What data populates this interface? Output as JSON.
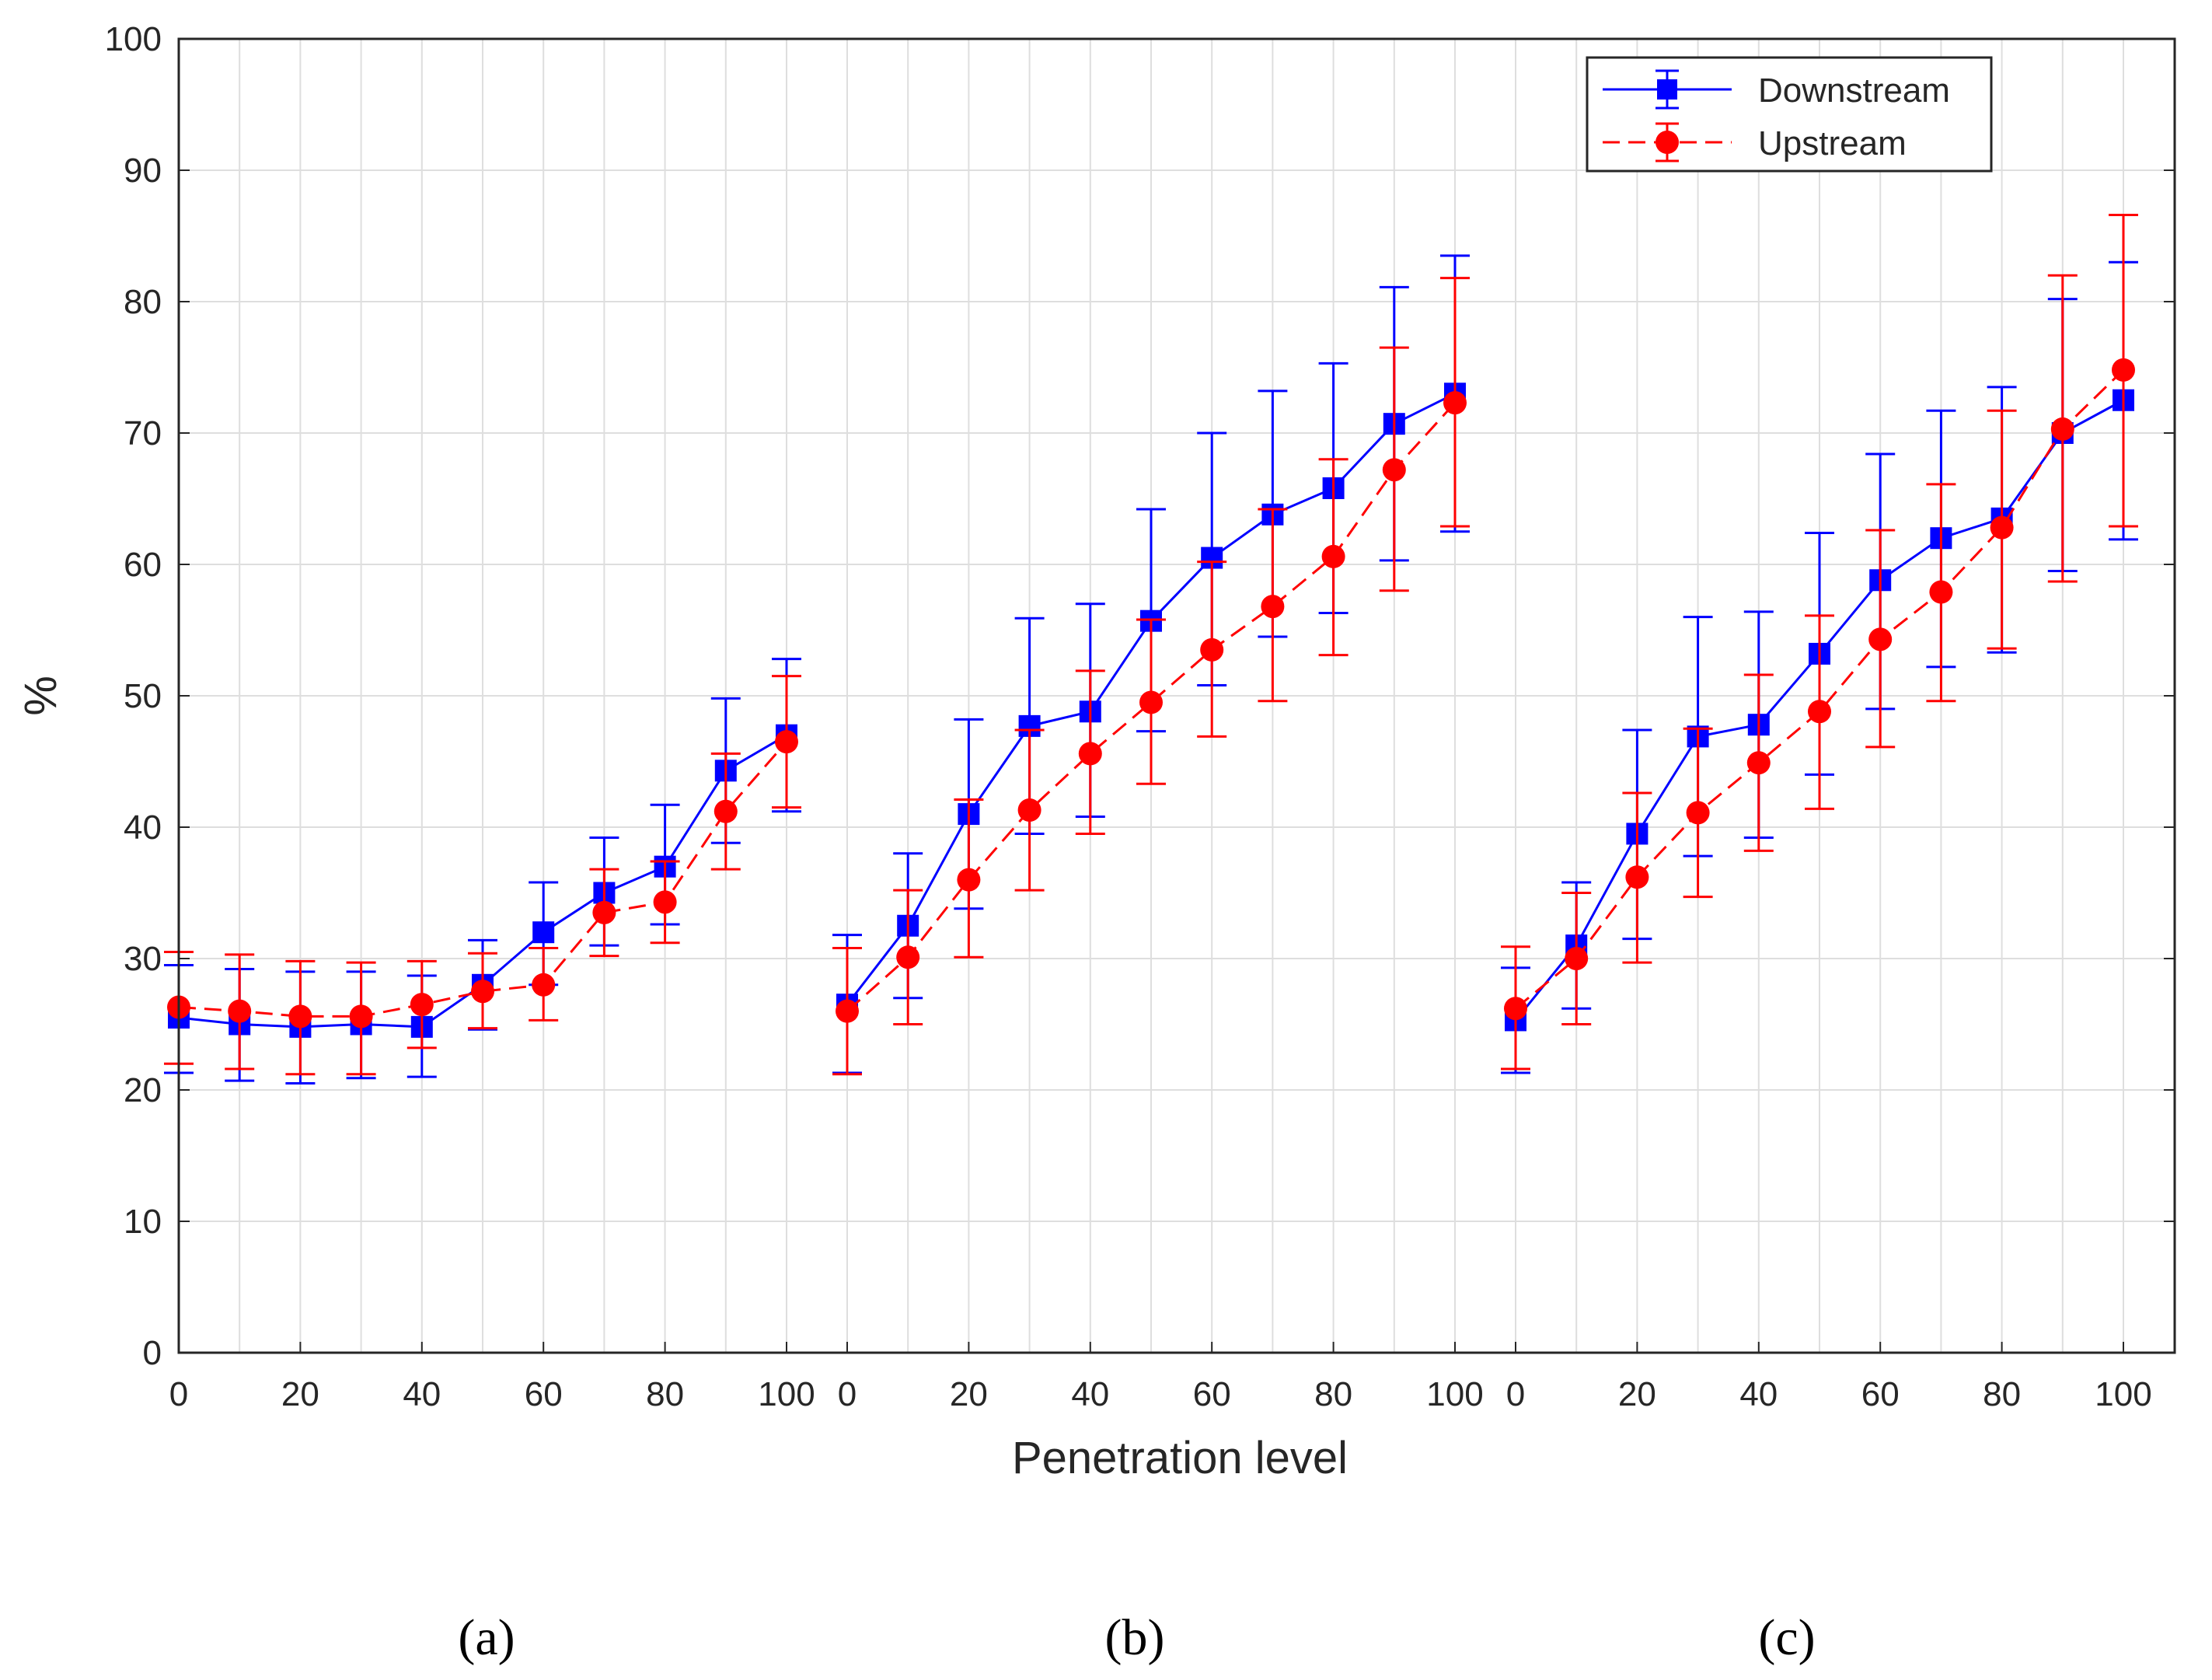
{
  "chart_data": {
    "type": "line",
    "title": "",
    "xlabel": "Penetration level",
    "ylabel": "%",
    "ylim": [
      0,
      100
    ],
    "yticks": [
      "0",
      "10",
      "20",
      "30",
      "40",
      "50",
      "60",
      "70",
      "80",
      "90",
      "100"
    ],
    "grid": true,
    "legend_position": "top-right",
    "series_styles": {
      "Downstream": {
        "color": "#0000ff",
        "marker": "square",
        "line": "solid"
      },
      "Upstream": {
        "color": "#ff0000",
        "marker": "circle",
        "line": "dashed"
      }
    },
    "legend": [
      {
        "name": "Downstream",
        "marker": "square",
        "line": "solid",
        "color": "#0000ff"
      },
      {
        "name": "Upstream",
        "marker": "circle",
        "line": "dashed",
        "color": "#ff0000"
      }
    ],
    "panels": [
      {
        "label": "(a)",
        "x": [
          0,
          10,
          20,
          30,
          40,
          50,
          60,
          70,
          80,
          90,
          100
        ],
        "xtick_labels": [
          "0",
          "20",
          "40",
          "60",
          "80",
          "100"
        ],
        "series": [
          {
            "name": "Downstream",
            "values": [
              25.5,
              25.0,
              24.8,
              25.0,
              24.8,
              28.0,
              32.0,
              35.0,
              37.0,
              44.3,
              47.0
            ],
            "lower": [
              21.3,
              20.7,
              20.5,
              20.9,
              21.0,
              24.6,
              28.0,
              31.0,
              32.6,
              38.8,
              41.2
            ],
            "upper": [
              29.5,
              29.2,
              29.0,
              29.0,
              28.7,
              31.4,
              35.8,
              39.2,
              41.7,
              49.8,
              52.8
            ]
          },
          {
            "name": "Upstream",
            "values": [
              26.3,
              26.0,
              25.6,
              25.6,
              26.5,
              27.5,
              28.0,
              33.5,
              34.3,
              41.2,
              46.5
            ],
            "lower": [
              22.0,
              21.6,
              21.2,
              21.2,
              23.2,
              24.7,
              25.3,
              30.2,
              31.2,
              36.8,
              41.5
            ],
            "upper": [
              30.5,
              30.3,
              29.8,
              29.7,
              29.8,
              30.4,
              30.8,
              36.8,
              37.4,
              45.6,
              51.5
            ]
          }
        ]
      },
      {
        "label": "(b)",
        "x": [
          0,
          10,
          20,
          30,
          40,
          50,
          60,
          70,
          80,
          90,
          100
        ],
        "xtick_labels": [
          "0",
          "20",
          "40",
          "60",
          "80",
          "100"
        ],
        "series": [
          {
            "name": "Downstream",
            "values": [
              26.5,
              32.5,
              41.0,
              47.7,
              48.8,
              55.7,
              60.5,
              63.8,
              65.8,
              70.7,
              73.0
            ],
            "lower": [
              21.3,
              27.0,
              33.8,
              39.5,
              40.8,
              47.3,
              50.8,
              54.5,
              56.3,
              60.3,
              62.5
            ],
            "upper": [
              31.8,
              38.0,
              48.2,
              55.9,
              57.0,
              64.2,
              70.0,
              73.2,
              75.3,
              81.1,
              83.5
            ]
          },
          {
            "name": "Upstream",
            "values": [
              26.0,
              30.1,
              36.0,
              41.3,
              45.6,
              49.5,
              53.5,
              56.8,
              60.6,
              67.2,
              72.3
            ],
            "lower": [
              21.2,
              25.0,
              30.1,
              35.2,
              39.5,
              43.3,
              46.9,
              49.6,
              53.1,
              58.0,
              62.9
            ],
            "upper": [
              30.8,
              35.2,
              42.1,
              47.4,
              51.9,
              55.8,
              60.2,
              64.2,
              68.0,
              76.5,
              81.8
            ]
          }
        ]
      },
      {
        "label": "(c)",
        "x": [
          0,
          10,
          20,
          30,
          40,
          50,
          60,
          70,
          80,
          90,
          100
        ],
        "xtick_labels": [
          "0",
          "20",
          "40",
          "60",
          "80",
          "100"
        ],
        "series": [
          {
            "name": "Downstream",
            "values": [
              25.3,
              31.0,
              39.5,
              46.9,
              47.8,
              53.2,
              58.8,
              62.0,
              63.5,
              70.0,
              72.5
            ],
            "lower": [
              21.3,
              26.2,
              31.5,
              37.8,
              39.2,
              44.0,
              49.0,
              52.2,
              53.3,
              59.5,
              61.9
            ],
            "upper": [
              29.3,
              35.8,
              47.4,
              56.0,
              56.4,
              62.4,
              68.4,
              71.7,
              73.5,
              80.2,
              83.0
            ]
          },
          {
            "name": "Upstream",
            "values": [
              26.2,
              30.0,
              36.2,
              41.1,
              44.9,
              48.8,
              54.3,
              57.9,
              62.8,
              70.3,
              74.8
            ],
            "lower": [
              21.6,
              25.0,
              29.7,
              34.7,
              38.2,
              41.4,
              46.1,
              49.6,
              53.6,
              58.7,
              62.9
            ],
            "upper": [
              30.9,
              35.0,
              42.6,
              47.5,
              51.6,
              56.1,
              62.6,
              66.1,
              71.7,
              82.0,
              86.6
            ]
          }
        ]
      }
    ]
  }
}
